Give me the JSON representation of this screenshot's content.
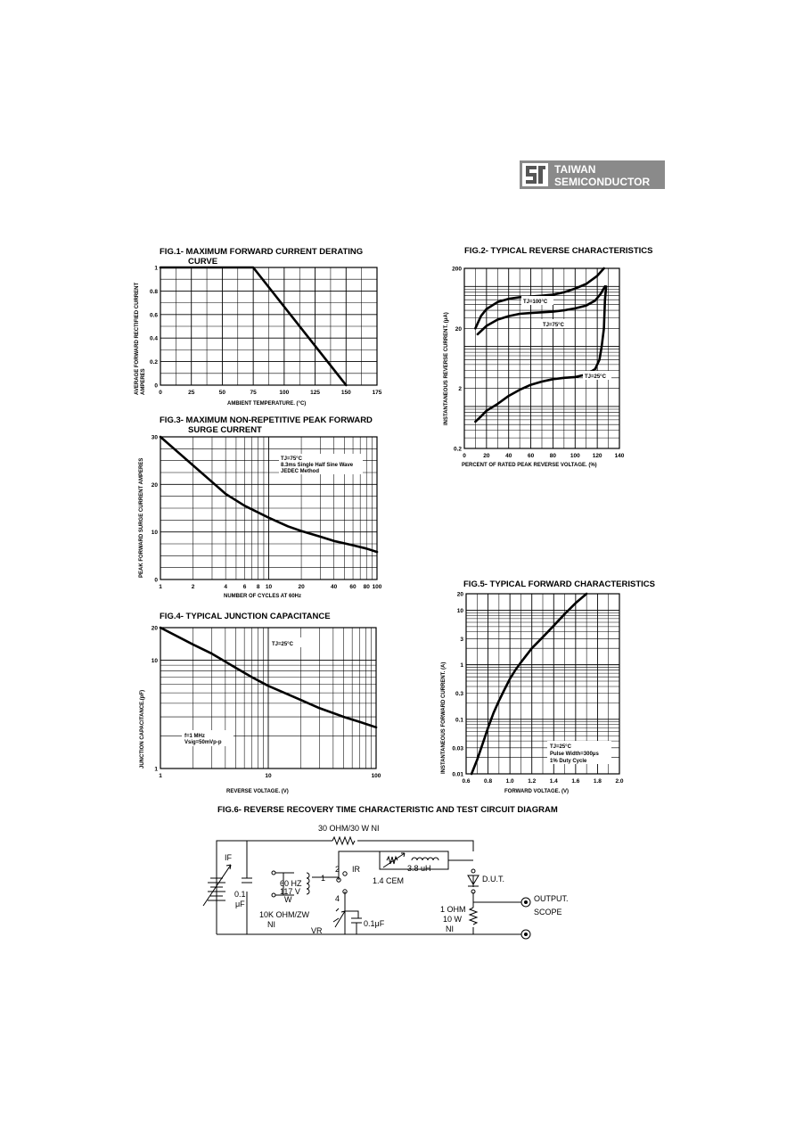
{
  "logo": {
    "line1": "TAIWAN",
    "line2": "SEMICONDUCTOR",
    "color": "#8a8a8a"
  },
  "chart_data": [
    {
      "id": "fig1",
      "type": "line",
      "title_line1": "FIG.1- MAXIMUM FORWARD CURRENT DERATING",
      "title_line2": "CURVE",
      "xlabel": "AMBIENT TEMPERATURE. (°C)",
      "ylabel_line1": "AVERAGE FORWARD RECTIFIED CURRENT",
      "ylabel_line2": "AMPERES",
      "xlim": [
        0,
        175
      ],
      "ylim": [
        0,
        1
      ],
      "xticks": [
        "0",
        "25",
        "50",
        "75",
        "100",
        "125",
        "150",
        "175"
      ],
      "yticks": [
        "0",
        "0.2",
        "0.4",
        "0.6",
        "0.8",
        "1"
      ],
      "grid": true,
      "series": [
        {
          "x": [
            0,
            75,
            150
          ],
          "y": [
            1,
            1,
            0
          ]
        }
      ]
    },
    {
      "id": "fig2",
      "type": "line",
      "title_line1": "FIG.2- TYPICAL REVERSE CHARACTERISTICS",
      "xlabel": "PERCENT OF RATED PEAK REVERSE VOLTAGE. (%)",
      "ylabel": "INSTANTANEOUS REVERSE CURRENT. (μA)",
      "xlim": [
        0,
        140
      ],
      "ylim": [
        0.2,
        200
      ],
      "yscale": "log",
      "xticks": [
        "0",
        "20",
        "40",
        "60",
        "80",
        "100",
        "120",
        "140"
      ],
      "yticks": [
        "0.2",
        "2",
        "20",
        "200"
      ],
      "grid": true,
      "series": [
        {
          "name": "TJ=100°C",
          "x": [
            10,
            15,
            20,
            30,
            40,
            50,
            60,
            70,
            80,
            90,
            100,
            110,
            120,
            126
          ],
          "y": [
            20,
            32,
            42,
            55,
            62,
            66,
            68,
            70,
            73,
            80,
            92,
            110,
            150,
            200
          ]
        },
        {
          "name": "TJ=75°C",
          "x": [
            12,
            20,
            30,
            40,
            50,
            60,
            70,
            80,
            90,
            100,
            110,
            118,
            123,
            127
          ],
          "y": [
            16,
            22,
            28,
            32,
            35,
            36,
            37,
            38,
            40,
            43,
            48,
            58,
            75,
            100
          ]
        },
        {
          "name": "TJ=25°C",
          "x": [
            10,
            15,
            20,
            30,
            40,
            50,
            60,
            70,
            80,
            90,
            100,
            110,
            118,
            122,
            124,
            126,
            127,
            128
          ],
          "y": [
            0.56,
            0.68,
            0.85,
            1.1,
            1.5,
            1.9,
            2.3,
            2.6,
            2.85,
            3.0,
            3.1,
            3.4,
            4.2,
            6,
            10,
            20,
            60,
            100
          ]
        }
      ]
    },
    {
      "id": "fig3",
      "type": "line",
      "title_line1": "FIG.3- MAXIMUM NON-REPETITIVE PEAK FORWARD",
      "title_line2": "SURGE CURRENT",
      "xlabel": "NUMBER OF CYCLES AT 60Hz",
      "ylabel": "PEAK FORWARD SURGE CURRENT AMPERES",
      "xlim": [
        1,
        100
      ],
      "xscale": "log",
      "ylim": [
        0,
        30
      ],
      "xticks": [
        "1",
        "2",
        "4",
        "6",
        "8",
        "10",
        "20",
        "40",
        "60",
        "80",
        "100"
      ],
      "yticks": [
        "0",
        "10",
        "20",
        "30"
      ],
      "grid": true,
      "annotations": [
        "TJ=75°C",
        "8.3ms Single Half Sine Wave",
        "JEDEC Method"
      ],
      "series": [
        {
          "x": [
            1,
            1.5,
            2,
            3,
            4,
            6,
            10,
            15,
            20,
            30,
            40,
            60,
            80,
            100
          ],
          "y": [
            30,
            26.5,
            24,
            20.5,
            18,
            15.5,
            13,
            11.2,
            10.2,
            9,
            8.1,
            7.2,
            6.5,
            5.8
          ]
        }
      ]
    },
    {
      "id": "fig4",
      "type": "line",
      "title_line1": "FIG.4- TYPICAL JUNCTION CAPACITANCE",
      "xlabel": "REVERSE VOLTAGE. (V)",
      "ylabel": "JUNCTION CAPACITANCE.(pF)",
      "xlim": [
        1,
        100
      ],
      "xscale": "log",
      "ylim": [
        1,
        20
      ],
      "yscale": "log",
      "xticks": [
        "1",
        "10",
        "100"
      ],
      "yticks": [
        "1",
        "10",
        "20"
      ],
      "grid": true,
      "annotations": [
        "TJ=25°C",
        "f=1 MHz",
        "Vsig=50mVp-p"
      ],
      "series": [
        {
          "x": [
            1,
            2,
            3,
            5,
            7,
            10,
            20,
            30,
            50,
            70,
            100
          ],
          "y": [
            20,
            14,
            11.5,
            8.5,
            7,
            5.8,
            4.3,
            3.6,
            3.0,
            2.7,
            2.4
          ]
        }
      ]
    },
    {
      "id": "fig5",
      "type": "line",
      "title_line1": "FIG.5- TYPICAL FORWARD CHARACTERISTICS",
      "xlabel": "FORWARD VOLTAGE. (V)",
      "ylabel": "INSTANTANEOUS FORWARD CURRENT. (A)",
      "xlim": [
        0.6,
        2.0
      ],
      "ylim": [
        0.01,
        20
      ],
      "yscale": "log",
      "xticks": [
        "0.6",
        "0.8",
        "1.0",
        "1.2",
        "1.4",
        "1.6",
        "1.8",
        "2.0"
      ],
      "yticks": [
        "0.01",
        "0.03",
        "0.1",
        "0.3",
        "1",
        "3",
        "10",
        "20"
      ],
      "grid": true,
      "annotations": [
        "TJ=25°C",
        "Pulse Width=300μs",
        "1% Duty Cycle"
      ],
      "series": [
        {
          "x": [
            0.65,
            0.7,
            0.75,
            0.8,
            0.85,
            0.9,
            0.95,
            1.0,
            1.05,
            1.1,
            1.2,
            1.3,
            1.4,
            1.5,
            1.6,
            1.7
          ],
          "y": [
            0.01,
            0.018,
            0.035,
            0.07,
            0.13,
            0.22,
            0.35,
            0.55,
            0.8,
            1.1,
            2.0,
            3.2,
            5.2,
            8.5,
            13.5,
            20
          ]
        }
      ]
    }
  ],
  "fig6": {
    "title": "FIG.6- REVERSE RECOVERY TIME CHARACTERISTIC AND TEST CIRCUIT DIAGRAM",
    "r_top": "30  OHM/30  W  NI",
    "if_label": "IF",
    "cap1_a": "0.1",
    "cap1_b": "μF",
    "src_a": "60 HZ",
    "src_b": "117 V",
    "src_c": "W",
    "node1": "1",
    "node2": "2",
    "node4": "4",
    "ir_label": "IR",
    "ind_label": "3.8 uH",
    "cem_label": "1.4 CEM",
    "dut_label": "D.U.T.",
    "out_a": "OUTPUT.",
    "out_b": "SCOPE",
    "r2_a": "1 OHM",
    "r2_b": "10 W",
    "r2_c": "NI",
    "pot_a": "10K  OHM/ZW",
    "pot_b": "NI",
    "vr_label": "VR",
    "cap2_label": "0.1μF"
  }
}
